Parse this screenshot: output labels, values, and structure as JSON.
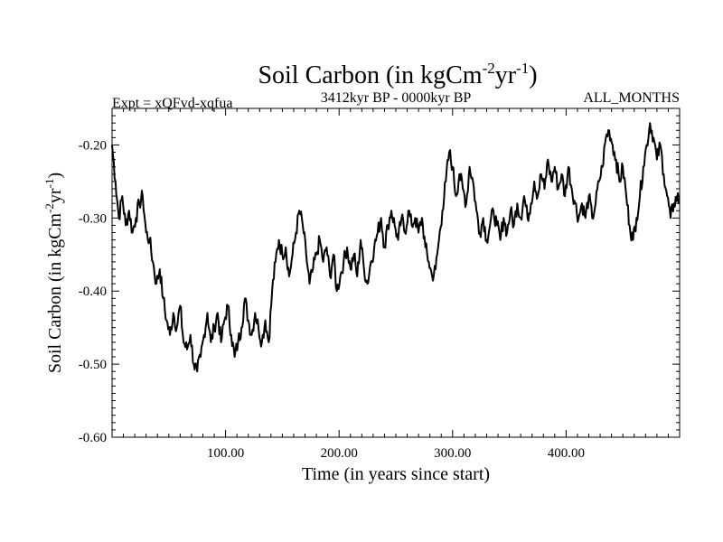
{
  "chart_data": {
    "type": "line",
    "title": {
      "main": "Soil Carbon (in kgCm",
      "exp1": "-2",
      "mid": "yr",
      "exp2": "-1",
      "close": ")"
    },
    "subtitle_left": "Expt = xQFvd-xqfua",
    "subtitle_center": "3412kyr BP - 0000kyr BP",
    "subtitle_right": "ALL_MONTHS",
    "xlabel": "Time (in years since start)",
    "ylabel": {
      "main": "Soil Carbon (in kgCm",
      "exp1": "-2",
      "mid": "yr",
      "exp2": "-1",
      "close": ")"
    },
    "xlim": [
      0,
      500
    ],
    "ylim": [
      -0.6,
      -0.15
    ],
    "xticks": [
      {
        "value": 100,
        "label": "100.00"
      },
      {
        "value": 200,
        "label": "200.00"
      },
      {
        "value": 300,
        "label": "300.00"
      },
      {
        "value": 400,
        "label": "400.00"
      }
    ],
    "yticks": [
      {
        "value": -0.6,
        "label": "-0.60"
      },
      {
        "value": -0.5,
        "label": "-0.50"
      },
      {
        "value": -0.4,
        "label": "-0.40"
      },
      {
        "value": -0.3,
        "label": "-0.30"
      },
      {
        "value": -0.2,
        "label": "-0.20"
      }
    ],
    "series": [
      {
        "name": "Soil Carbon",
        "color": "#000000",
        "points": [
          [
            0,
            -0.2
          ],
          [
            3,
            -0.25
          ],
          [
            6,
            -0.3
          ],
          [
            9,
            -0.27
          ],
          [
            12,
            -0.31
          ],
          [
            15,
            -0.29
          ],
          [
            18,
            -0.32
          ],
          [
            21,
            -0.3
          ],
          [
            24,
            -0.28
          ],
          [
            27,
            -0.27
          ],
          [
            30,
            -0.32
          ],
          [
            33,
            -0.33
          ],
          [
            36,
            -0.36
          ],
          [
            39,
            -0.39
          ],
          [
            42,
            -0.37
          ],
          [
            45,
            -0.41
          ],
          [
            48,
            -0.44
          ],
          [
            51,
            -0.46
          ],
          [
            54,
            -0.43
          ],
          [
            57,
            -0.45
          ],
          [
            60,
            -0.42
          ],
          [
            63,
            -0.47
          ],
          [
            66,
            -0.48
          ],
          [
            69,
            -0.46
          ],
          [
            72,
            -0.5
          ],
          [
            75,
            -0.51
          ],
          [
            78,
            -0.49
          ],
          [
            81,
            -0.46
          ],
          [
            84,
            -0.43
          ],
          [
            87,
            -0.47
          ],
          [
            90,
            -0.45
          ],
          [
            93,
            -0.43
          ],
          [
            96,
            -0.47
          ],
          [
            99,
            -0.44
          ],
          [
            102,
            -0.42
          ],
          [
            105,
            -0.46
          ],
          [
            108,
            -0.49
          ],
          [
            111,
            -0.47
          ],
          [
            114,
            -0.45
          ],
          [
            117,
            -0.41
          ],
          [
            120,
            -0.44
          ],
          [
            123,
            -0.46
          ],
          [
            126,
            -0.43
          ],
          [
            129,
            -0.45
          ],
          [
            132,
            -0.47
          ],
          [
            135,
            -0.44
          ],
          [
            138,
            -0.47
          ],
          [
            141,
            -0.4
          ],
          [
            144,
            -0.36
          ],
          [
            147,
            -0.33
          ],
          [
            150,
            -0.35
          ],
          [
            153,
            -0.34
          ],
          [
            156,
            -0.38
          ],
          [
            159,
            -0.35
          ],
          [
            162,
            -0.32
          ],
          [
            165,
            -0.29
          ],
          [
            168,
            -0.31
          ],
          [
            171,
            -0.35
          ],
          [
            174,
            -0.39
          ],
          [
            177,
            -0.37
          ],
          [
            180,
            -0.35
          ],
          [
            183,
            -0.33
          ],
          [
            186,
            -0.36
          ],
          [
            189,
            -0.34
          ],
          [
            192,
            -0.38
          ],
          [
            195,
            -0.35
          ],
          [
            198,
            -0.4
          ],
          [
            201,
            -0.38
          ],
          [
            204,
            -0.36
          ],
          [
            207,
            -0.34
          ],
          [
            210,
            -0.37
          ],
          [
            213,
            -0.35
          ],
          [
            216,
            -0.38
          ],
          [
            219,
            -0.33
          ],
          [
            222,
            -0.37
          ],
          [
            225,
            -0.39
          ],
          [
            228,
            -0.36
          ],
          [
            231,
            -0.34
          ],
          [
            234,
            -0.32
          ],
          [
            237,
            -0.3
          ],
          [
            240,
            -0.34
          ],
          [
            243,
            -0.31
          ],
          [
            246,
            -0.29
          ],
          [
            249,
            -0.31
          ],
          [
            252,
            -0.33
          ],
          [
            255,
            -0.3
          ],
          [
            258,
            -0.32
          ],
          [
            261,
            -0.29
          ],
          [
            264,
            -0.31
          ],
          [
            267,
            -0.3
          ],
          [
            270,
            -0.32
          ],
          [
            273,
            -0.3
          ],
          [
            276,
            -0.34
          ],
          [
            279,
            -0.36
          ],
          [
            282,
            -0.38
          ],
          [
            285,
            -0.37
          ],
          [
            288,
            -0.33
          ],
          [
            291,
            -0.29
          ],
          [
            294,
            -0.25
          ],
          [
            297,
            -0.21
          ],
          [
            300,
            -0.23
          ],
          [
            303,
            -0.27
          ],
          [
            306,
            -0.24
          ],
          [
            309,
            -0.26
          ],
          [
            312,
            -0.28
          ],
          [
            315,
            -0.23
          ],
          [
            318,
            -0.25
          ],
          [
            321,
            -0.29
          ],
          [
            324,
            -0.32
          ],
          [
            327,
            -0.3
          ],
          [
            330,
            -0.33
          ],
          [
            333,
            -0.31
          ],
          [
            336,
            -0.29
          ],
          [
            339,
            -0.31
          ],
          [
            342,
            -0.33
          ],
          [
            345,
            -0.3
          ],
          [
            348,
            -0.32
          ],
          [
            351,
            -0.29
          ],
          [
            354,
            -0.31
          ],
          [
            357,
            -0.28
          ],
          [
            360,
            -0.3
          ],
          [
            363,
            -0.27
          ],
          [
            366,
            -0.3
          ],
          [
            369,
            -0.28
          ],
          [
            372,
            -0.25
          ],
          [
            375,
            -0.27
          ],
          [
            378,
            -0.24
          ],
          [
            381,
            -0.26
          ],
          [
            384,
            -0.22
          ],
          [
            387,
            -0.25
          ],
          [
            390,
            -0.23
          ],
          [
            393,
            -0.26
          ],
          [
            396,
            -0.24
          ],
          [
            399,
            -0.27
          ],
          [
            402,
            -0.23
          ],
          [
            405,
            -0.26
          ],
          [
            408,
            -0.28
          ],
          [
            411,
            -0.3
          ],
          [
            414,
            -0.28
          ],
          [
            417,
            -0.3
          ],
          [
            420,
            -0.27
          ],
          [
            423,
            -0.3
          ],
          [
            426,
            -0.28
          ],
          [
            429,
            -0.25
          ],
          [
            432,
            -0.23
          ],
          [
            435,
            -0.19
          ],
          [
            438,
            -0.18
          ],
          [
            441,
            -0.2
          ],
          [
            444,
            -0.22
          ],
          [
            447,
            -0.25
          ],
          [
            450,
            -0.23
          ],
          [
            453,
            -0.27
          ],
          [
            456,
            -0.31
          ],
          [
            459,
            -0.33
          ],
          [
            462,
            -0.3
          ],
          [
            465,
            -0.27
          ],
          [
            468,
            -0.23
          ],
          [
            471,
            -0.2
          ],
          [
            474,
            -0.17
          ],
          [
            477,
            -0.19
          ],
          [
            480,
            -0.22
          ],
          [
            483,
            -0.2
          ],
          [
            486,
            -0.24
          ],
          [
            489,
            -0.27
          ],
          [
            492,
            -0.3
          ],
          [
            495,
            -0.28
          ],
          [
            498,
            -0.27
          ],
          [
            500,
            -0.28
          ]
        ]
      }
    ]
  }
}
